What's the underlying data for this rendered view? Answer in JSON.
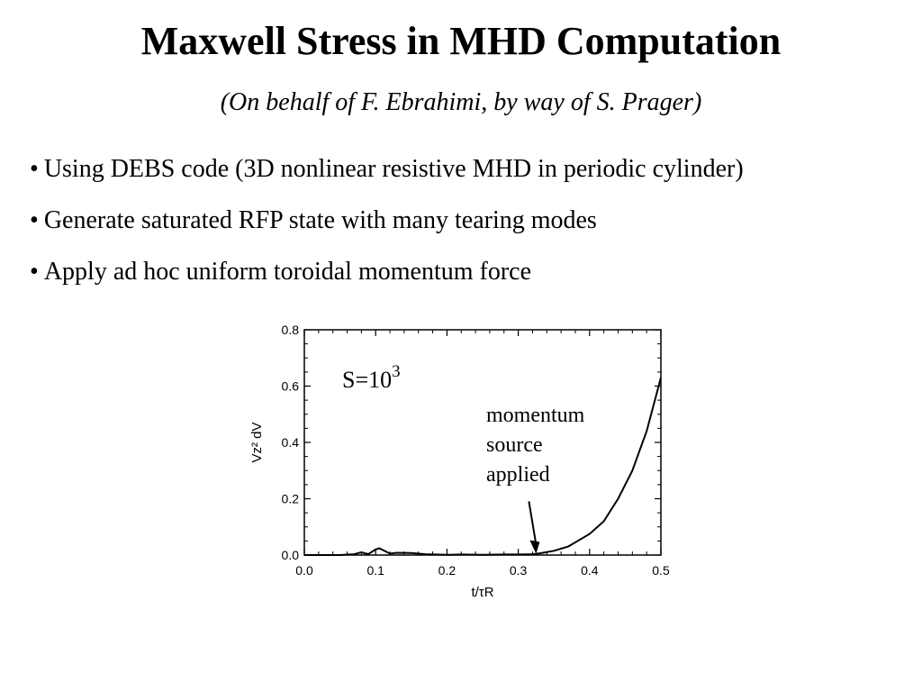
{
  "slide": {
    "title": "Maxwell Stress in MHD Computation",
    "subtitle": "(On behalf of F. Ebrahimi, by way of S. Prager)",
    "bullets": [
      "Using DEBS code (3D nonlinear resistive MHD in periodic cylinder)",
      "Generate saturated RFP state with many tearing modes",
      "Apply ad hoc uniform toroidal momentum force"
    ]
  },
  "chart_data": {
    "type": "line",
    "xlabel": "t/τR",
    "ylabel": "Vz² dV",
    "xlim": [
      0.0,
      0.5
    ],
    "ylim": [
      0.0,
      0.8
    ],
    "xticks": [
      "0.0",
      "0.1",
      "0.2",
      "0.3",
      "0.4",
      "0.5"
    ],
    "yticks": [
      "0.0",
      "0.2",
      "0.4",
      "0.6",
      "0.8"
    ],
    "grid": false,
    "annotations": {
      "s_label": "S=10",
      "s_exponent": "3",
      "arrow_lines": [
        "momentum",
        "source",
        "applied"
      ],
      "arrow_target": [
        0.325,
        0.005
      ]
    },
    "series": [
      {
        "x": [
          0.0,
          0.05,
          0.07,
          0.08,
          0.085,
          0.09,
          0.1,
          0.105,
          0.11,
          0.12,
          0.13,
          0.15,
          0.17,
          0.2,
          0.22,
          0.25,
          0.28,
          0.3,
          0.32,
          0.33,
          0.35,
          0.37,
          0.4,
          0.42,
          0.44,
          0.46,
          0.48,
          0.5
        ],
        "y": [
          0.0,
          0.0,
          0.003,
          0.01,
          0.006,
          0.004,
          0.02,
          0.024,
          0.018,
          0.005,
          0.008,
          0.007,
          0.003,
          0.001,
          0.002,
          0.001,
          0.002,
          0.002,
          0.003,
          0.006,
          0.015,
          0.03,
          0.075,
          0.12,
          0.2,
          0.3,
          0.44,
          0.63
        ]
      }
    ]
  }
}
